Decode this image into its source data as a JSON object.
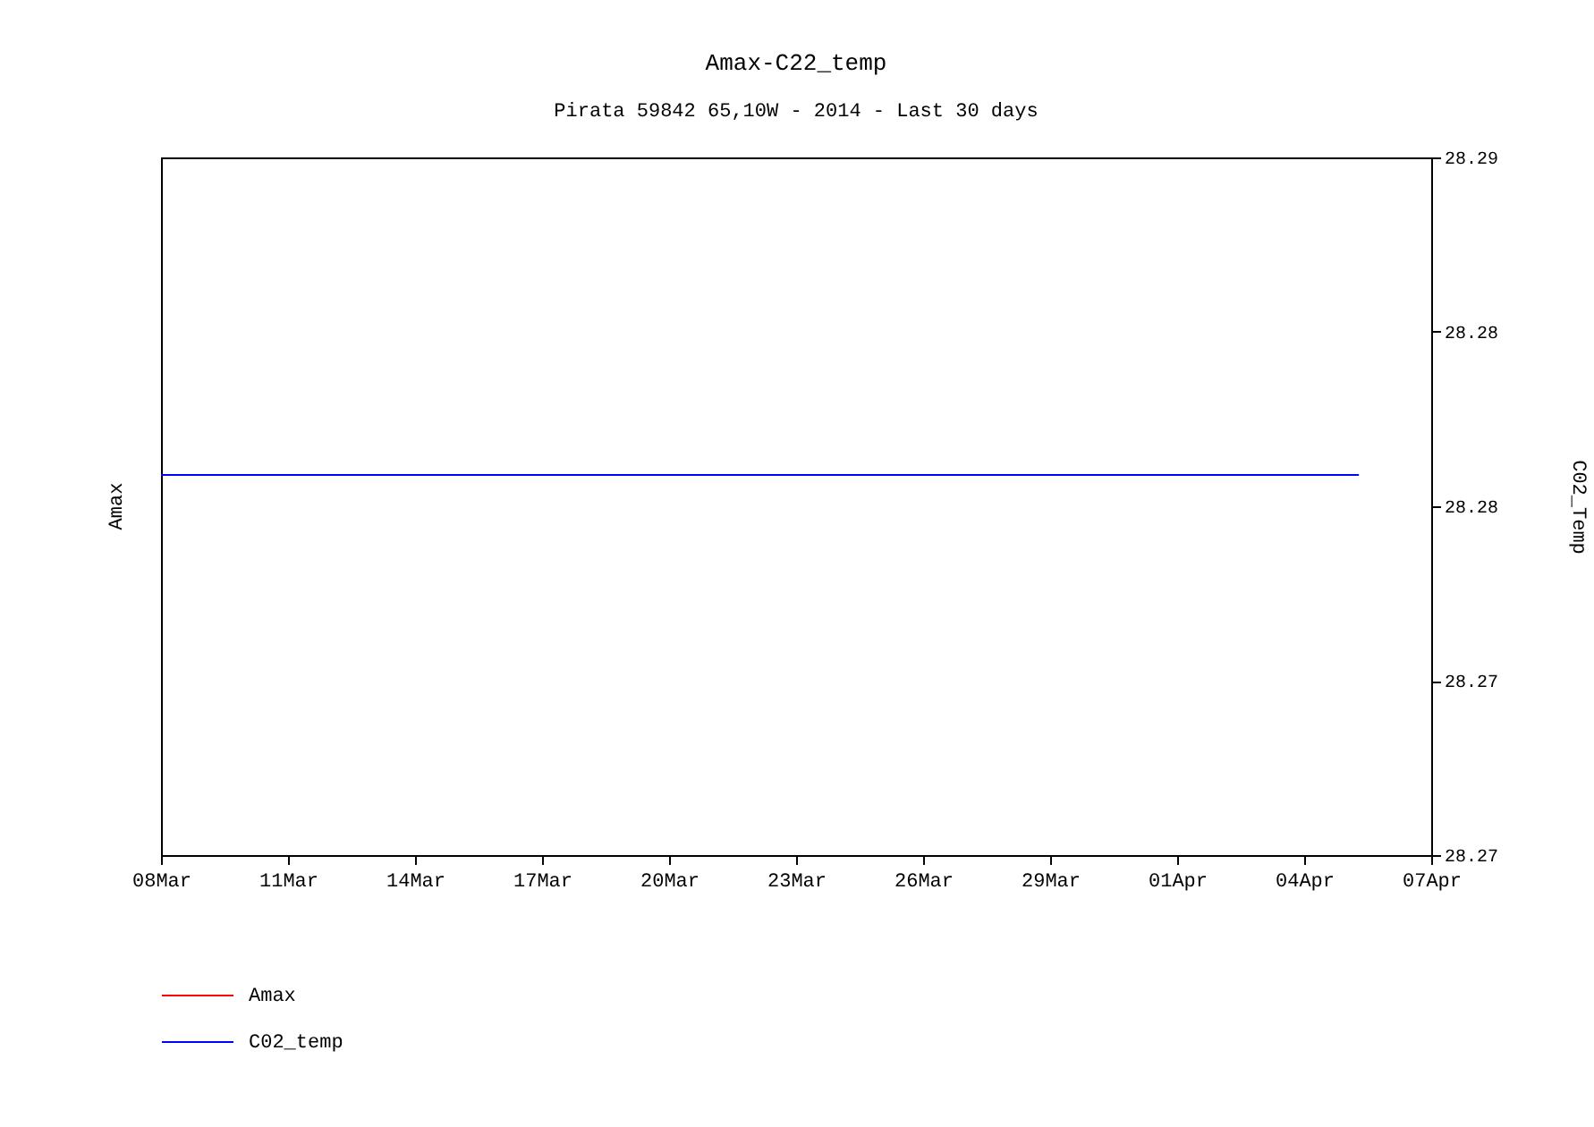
{
  "chart_data": {
    "type": "line",
    "title": "Amax-C22_temp",
    "subtitle": "Pirata 59842 65,10W - 2014 - Last 30 days",
    "ylabel": "Amax",
    "y2label": "C02_Temp",
    "x": [
      "2014-03-08",
      "2014-03-26",
      "2014-04-05T07:00"
    ],
    "xlim": [
      "2014-03-08",
      "2014-04-07"
    ],
    "xticks": [
      {
        "value": "2014-03-08",
        "label": "08Mar"
      },
      {
        "value": "2014-03-11",
        "label": "11Mar"
      },
      {
        "value": "2014-03-14",
        "label": "14Mar"
      },
      {
        "value": "2014-03-17",
        "label": "17Mar"
      },
      {
        "value": "2014-03-20",
        "label": "20Mar"
      },
      {
        "value": "2014-03-23",
        "label": "23Mar"
      },
      {
        "value": "2014-03-26",
        "label": "26Mar"
      },
      {
        "value": "2014-03-29",
        "label": "29Mar"
      },
      {
        "value": "2014-04-01",
        "label": "01Apr"
      },
      {
        "value": "2014-04-04",
        "label": "04Apr"
      },
      {
        "value": "2014-04-07",
        "label": "07Apr"
      }
    ],
    "y2lim": [
      28.27,
      28.29
    ],
    "y2ticks": [
      {
        "value": 28.27,
        "label": "28.27"
      },
      {
        "value": 28.275,
        "label": "28.27"
      },
      {
        "value": 28.28,
        "label": "28.28"
      },
      {
        "value": 28.285,
        "label": "28.28"
      },
      {
        "value": 28.29,
        "label": "28.29"
      }
    ],
    "series": [
      {
        "name": "Amax",
        "color": "#ff0000",
        "values": [
          null,
          null,
          null
        ]
      },
      {
        "name": "C02_temp",
        "color": "#0000ff",
        "axis": "y2",
        "values": [
          28.2809,
          28.2809,
          28.2809
        ]
      }
    ],
    "legend": "bottom left"
  }
}
